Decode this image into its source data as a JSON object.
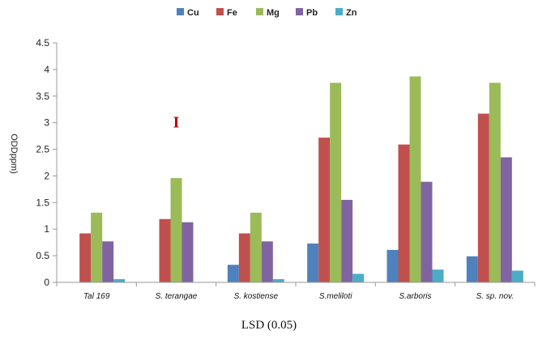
{
  "chart_data": {
    "type": "bar",
    "categories": [
      "Tal 169",
      "S. terangae",
      "S. kostiense",
      "S.meliloti",
      "S.arboris",
      "S. sp. nov."
    ],
    "series": [
      {
        "name": "Cu",
        "color": "#4f81bd",
        "values": [
          0.0,
          0.0,
          0.33,
          0.73,
          0.61,
          0.49
        ]
      },
      {
        "name": "Fe",
        "color": "#c0504d",
        "values": [
          0.92,
          1.19,
          0.92,
          2.72,
          2.59,
          3.17
        ]
      },
      {
        "name": "Mg",
        "color": "#9bbb59",
        "values": [
          1.31,
          1.96,
          1.31,
          3.75,
          3.87,
          3.75
        ]
      },
      {
        "name": "Pb",
        "color": "#8064a2",
        "values": [
          0.77,
          1.13,
          0.77,
          1.55,
          1.89,
          2.35
        ]
      },
      {
        "name": "Zn",
        "color": "#4bacc6",
        "values": [
          0.06,
          0.0,
          0.06,
          0.16,
          0.24,
          0.22
        ]
      }
    ],
    "ylim": [
      0,
      4.5
    ],
    "yticks": [
      "0",
      "0.5",
      "1",
      "1.5",
      "2",
      "2.5",
      "3",
      "3.5",
      "4",
      "4.5"
    ],
    "ylabel": "ODDppm)",
    "xlabel": "",
    "error_marker": {
      "symbol": "I",
      "color": "#c00000",
      "category_index": 1,
      "value": 3.02
    },
    "legend_position": "top",
    "grid": false
  },
  "caption": "LSD (0.05)"
}
